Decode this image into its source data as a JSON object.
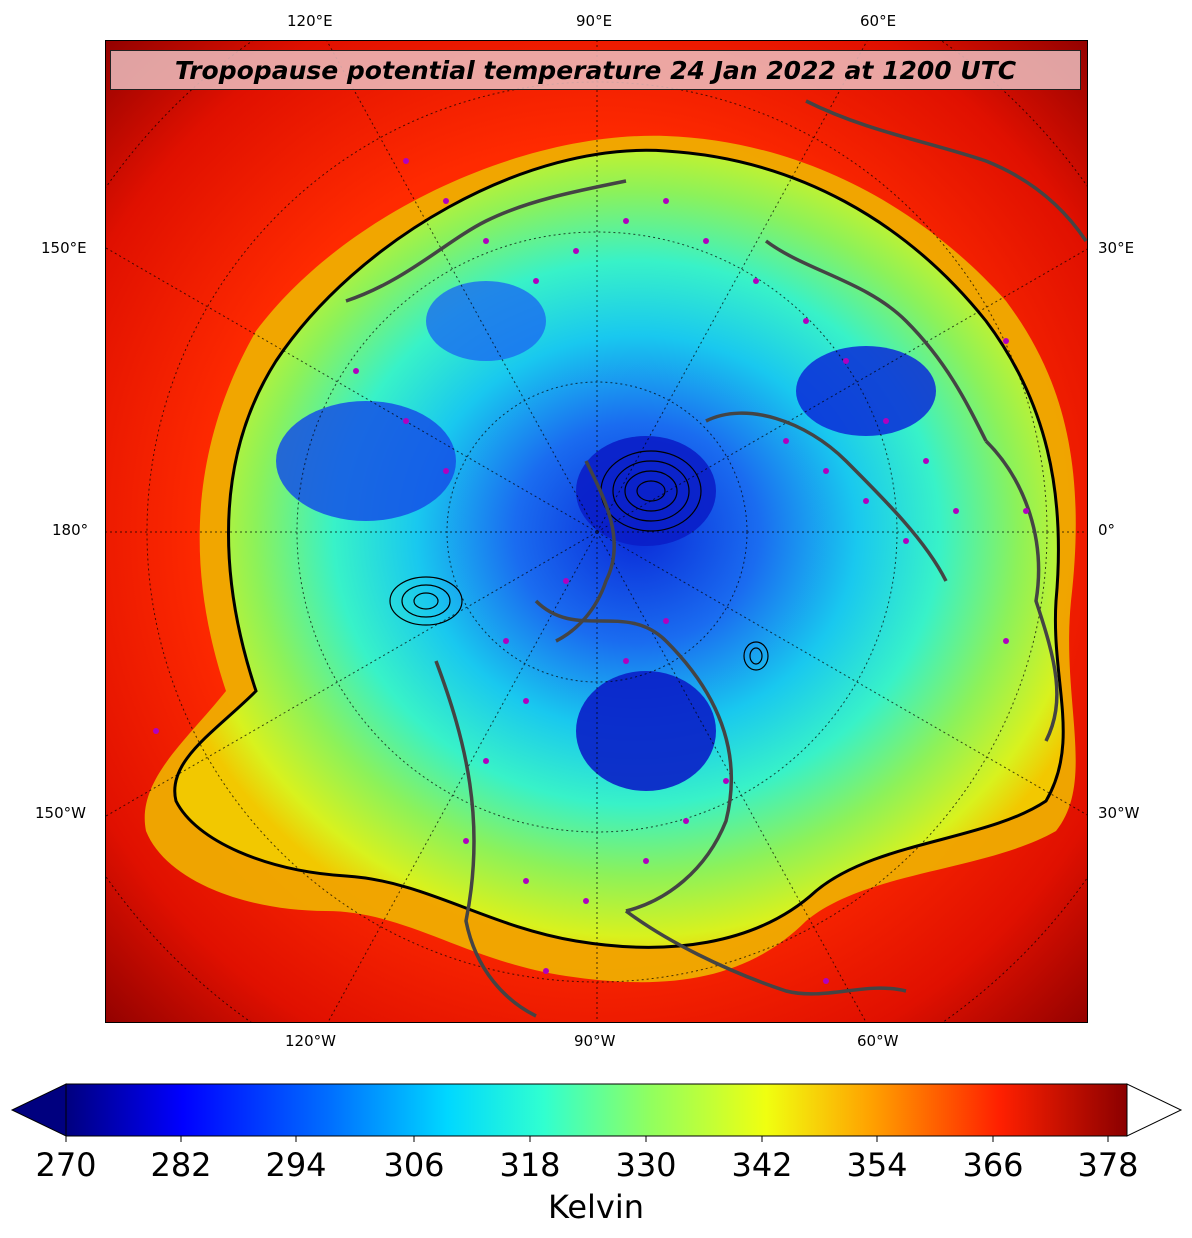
{
  "map": {
    "title": "Tropopause potential temperature 24 Jan 2022 at 1200 UTC",
    "top_labels": [
      "120°E",
      "90°E",
      "60°E"
    ],
    "bottom_labels": [
      "120°W",
      "90°W",
      "60°W"
    ],
    "left_labels": [
      "150°E",
      "180°",
      "150°W"
    ],
    "right_labels": [
      "30°E",
      "0°",
      "30°W"
    ]
  },
  "colorbar": {
    "ticks": [
      "270",
      "282",
      "294",
      "306",
      "318",
      "330",
      "342",
      "354",
      "366",
      "378"
    ],
    "unit": "Kelvin",
    "colors": [
      "#00007f",
      "#0000ff",
      "#0060ff",
      "#00c8ff",
      "#30ffd0",
      "#90ff60",
      "#e8ff10",
      "#ffa000",
      "#ff3000",
      "#8b0000"
    ]
  }
}
